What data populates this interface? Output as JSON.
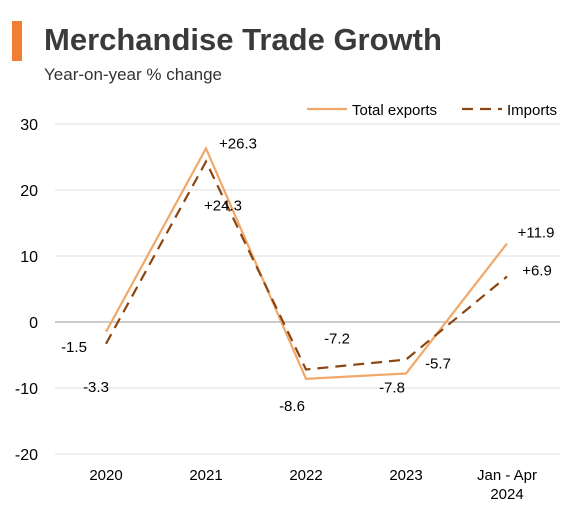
{
  "header": {
    "title": "Merchandise Trade Growth",
    "subtitle": "Year-on-year % change",
    "accent_color": "#f07f33"
  },
  "chart_data": {
    "type": "line",
    "categories": [
      "2020",
      "2021",
      "2022",
      "2023",
      "Jan - Apr\n2024"
    ],
    "ylim": [
      -20,
      30
    ],
    "yticks": [
      -20,
      -10,
      0,
      10,
      20,
      30
    ],
    "grid": true,
    "legend": "top-right",
    "series": [
      {
        "name": "Total exports",
        "style": "solid",
        "color": "#f0a868",
        "values": [
          -1.5,
          26.3,
          -8.6,
          -7.8,
          11.9
        ],
        "labels": [
          "-1.5",
          "+26.3",
          "-8.6",
          "-7.8",
          "+11.9"
        ]
      },
      {
        "name": "Imports",
        "style": "dashed",
        "color": "#8b4513",
        "values": [
          -3.3,
          24.3,
          -7.2,
          -5.7,
          6.9
        ],
        "labels": [
          "-3.3",
          "+24.3",
          "-7.2",
          "-5.7",
          "+6.9"
        ]
      }
    ]
  }
}
